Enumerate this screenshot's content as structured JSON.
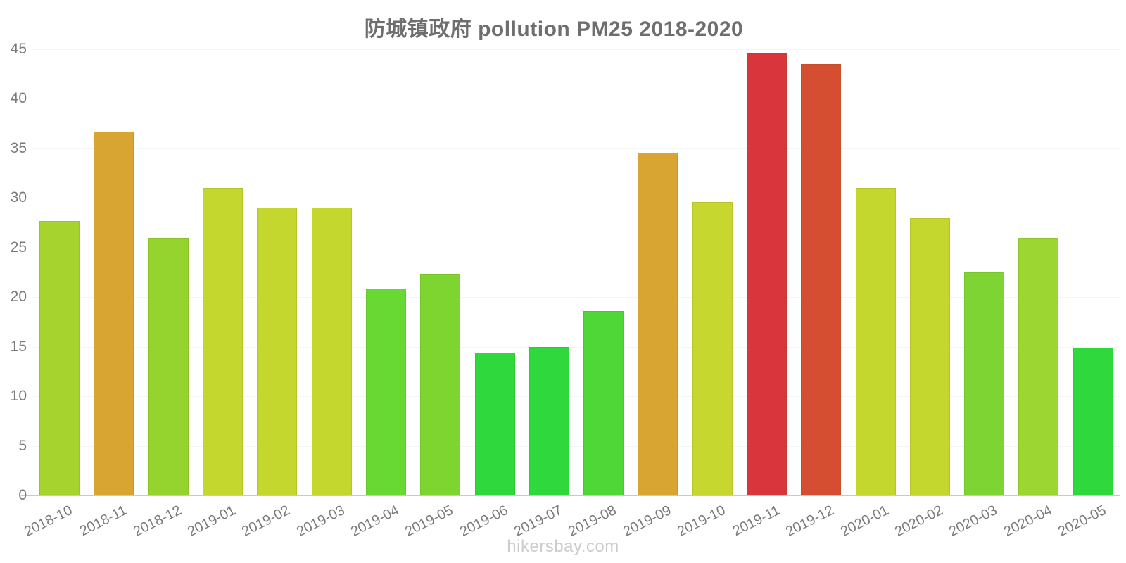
{
  "title": "防城镇政府 pollution PM25 2018-2020",
  "watermark": "hikersbay.com",
  "colors": {
    "title": "#6e6e6e",
    "tick_text": "#7a7a7a",
    "axis": "#c9c9c9",
    "grid": "#f4f4f4",
    "watermark": "#cccccc"
  },
  "chart_data": {
    "type": "bar",
    "title": "防城镇政府 pollution PM25 2018-2020",
    "xlabel": "",
    "ylabel": "",
    "ylim": [
      0,
      45
    ],
    "yticks": [
      0,
      5,
      10,
      15,
      20,
      25,
      30,
      35,
      40,
      45
    ],
    "grid": true,
    "legend": false,
    "x_tick_rotation_deg": -27,
    "categories": [
      "2018-10",
      "2018-11",
      "2018-12",
      "2019-01",
      "2019-02",
      "2019-03",
      "2019-04",
      "2019-05",
      "2019-06",
      "2019-07",
      "2019-08",
      "2019-09",
      "2019-10",
      "2019-11",
      "2019-12",
      "2020-01",
      "2020-02",
      "2020-03",
      "2020-04",
      "2020-05"
    ],
    "values": [
      27.7,
      36.7,
      26.0,
      31.0,
      29.0,
      29.0,
      20.9,
      22.3,
      14.4,
      15.0,
      18.6,
      34.6,
      29.6,
      44.6,
      43.5,
      31.0,
      28.0,
      22.5,
      26.0,
      14.9
    ],
    "bar_colors": [
      "#a6d32e",
      "#d8a533",
      "#95d42f",
      "#c4d72f",
      "#c4d72f",
      "#c4d72f",
      "#68d833",
      "#7fd52f",
      "#2fd83c",
      "#2fd83c",
      "#4fd637",
      "#d8a533",
      "#c6d72f",
      "#d8353c",
      "#d54e31",
      "#c4d72f",
      "#c4d72f",
      "#7ed433",
      "#9cd633",
      "#2fd83c"
    ]
  }
}
